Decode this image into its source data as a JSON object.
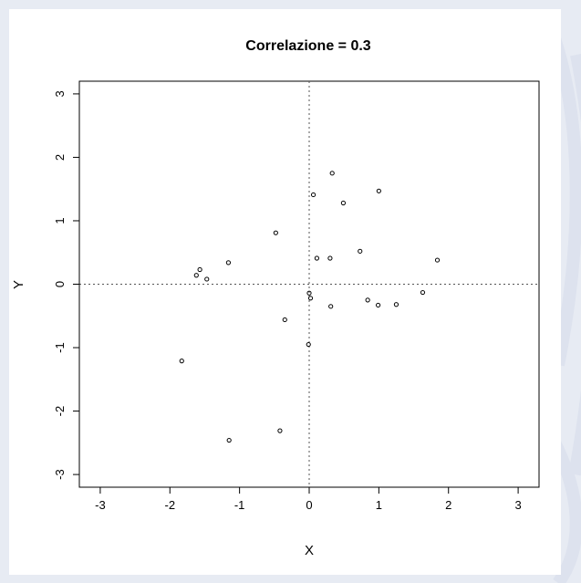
{
  "colors": {
    "page_background": "#e7ebf3",
    "plot_background": "#ffffff",
    "ink": "#000000"
  },
  "chart_data": {
    "type": "scatter",
    "title": "Correlazione = 0.3",
    "xlabel": "X",
    "ylabel": "Y",
    "xlim": [
      -3.3,
      3.3
    ],
    "ylim": [
      -3.2,
      3.2
    ],
    "xticks": [
      -3,
      -2,
      -1,
      0,
      1,
      2,
      3
    ],
    "xtick_labels": [
      "-3",
      "-2",
      "-1",
      "0",
      "1",
      "2",
      "3"
    ],
    "yticks": [
      -3,
      -2,
      -1,
      0,
      1,
      2,
      3
    ],
    "ytick_labels": [
      "-3",
      "-2",
      "-1",
      "0",
      "1",
      "2",
      "3"
    ],
    "reference_lines": {
      "x": 0,
      "y": 0,
      "style": "dotted"
    },
    "grid": false,
    "points": [
      {
        "x": 0.33,
        "y": 1.75
      },
      {
        "x": 0.06,
        "y": 1.41
      },
      {
        "x": 1.0,
        "y": 1.47
      },
      {
        "x": 0.49,
        "y": 1.28
      },
      {
        "x": -0.48,
        "y": 0.81
      },
      {
        "x": 0.73,
        "y": 0.52
      },
      {
        "x": 0.11,
        "y": 0.41
      },
      {
        "x": 0.3,
        "y": 0.41
      },
      {
        "x": 1.84,
        "y": 0.38
      },
      {
        "x": -1.16,
        "y": 0.34
      },
      {
        "x": -1.57,
        "y": 0.23
      },
      {
        "x": -1.62,
        "y": 0.14
      },
      {
        "x": -1.47,
        "y": 0.08
      },
      {
        "x": 0.0,
        "y": -0.14
      },
      {
        "x": 0.02,
        "y": -0.22
      },
      {
        "x": 1.63,
        "y": -0.13
      },
      {
        "x": 0.84,
        "y": -0.25
      },
      {
        "x": 0.99,
        "y": -0.33
      },
      {
        "x": 1.25,
        "y": -0.32
      },
      {
        "x": 0.31,
        "y": -0.35
      },
      {
        "x": -0.35,
        "y": -0.56
      },
      {
        "x": -0.01,
        "y": -0.95
      },
      {
        "x": -1.83,
        "y": -1.21
      },
      {
        "x": -0.42,
        "y": -2.31
      },
      {
        "x": -1.15,
        "y": -2.46
      }
    ]
  }
}
